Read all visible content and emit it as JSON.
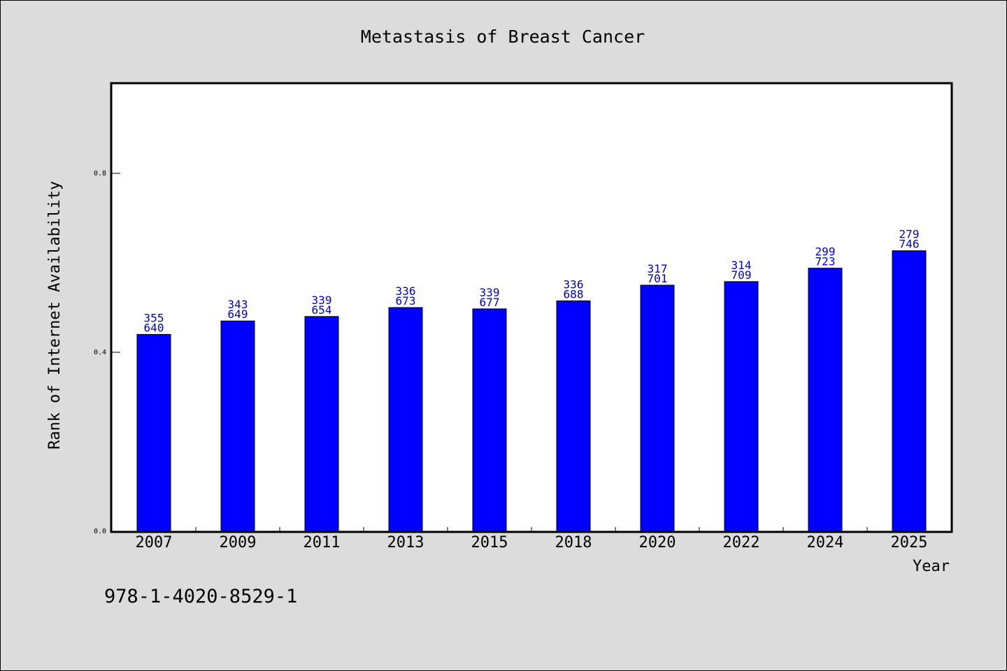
{
  "chart_data": {
    "type": "bar",
    "title": "Metastasis of Breast Cancer",
    "xlabel": "Year",
    "ylabel": "Rank of Internet Availability",
    "categories": [
      "2007",
      "2009",
      "2011",
      "2013",
      "2015",
      "2018",
      "2020",
      "2022",
      "2024",
      "2025"
    ],
    "values": [
      0.44,
      0.47,
      0.48,
      0.5,
      0.497,
      0.515,
      0.55,
      0.558,
      0.588,
      0.627
    ],
    "label_top": [
      "355",
      "343",
      "339",
      "336",
      "339",
      "336",
      "317",
      "314",
      "299",
      "279"
    ],
    "label_bottom": [
      "640",
      "649",
      "654",
      "673",
      "677",
      "688",
      "701",
      "709",
      "723",
      "746"
    ],
    "ylim": [
      0,
      1.0
    ],
    "yticks": [
      "0.0",
      "0.4",
      "0.8"
    ],
    "ytick_values": [
      0.0,
      0.4,
      0.8
    ],
    "grid": false,
    "legend": "none",
    "colors": {
      "bar": "#0000ff",
      "data_label": "#0000cc",
      "background": "#dcdcdc",
      "plot_bg": "#ffffff"
    }
  },
  "footnote": "978-1-4020-8529-1"
}
